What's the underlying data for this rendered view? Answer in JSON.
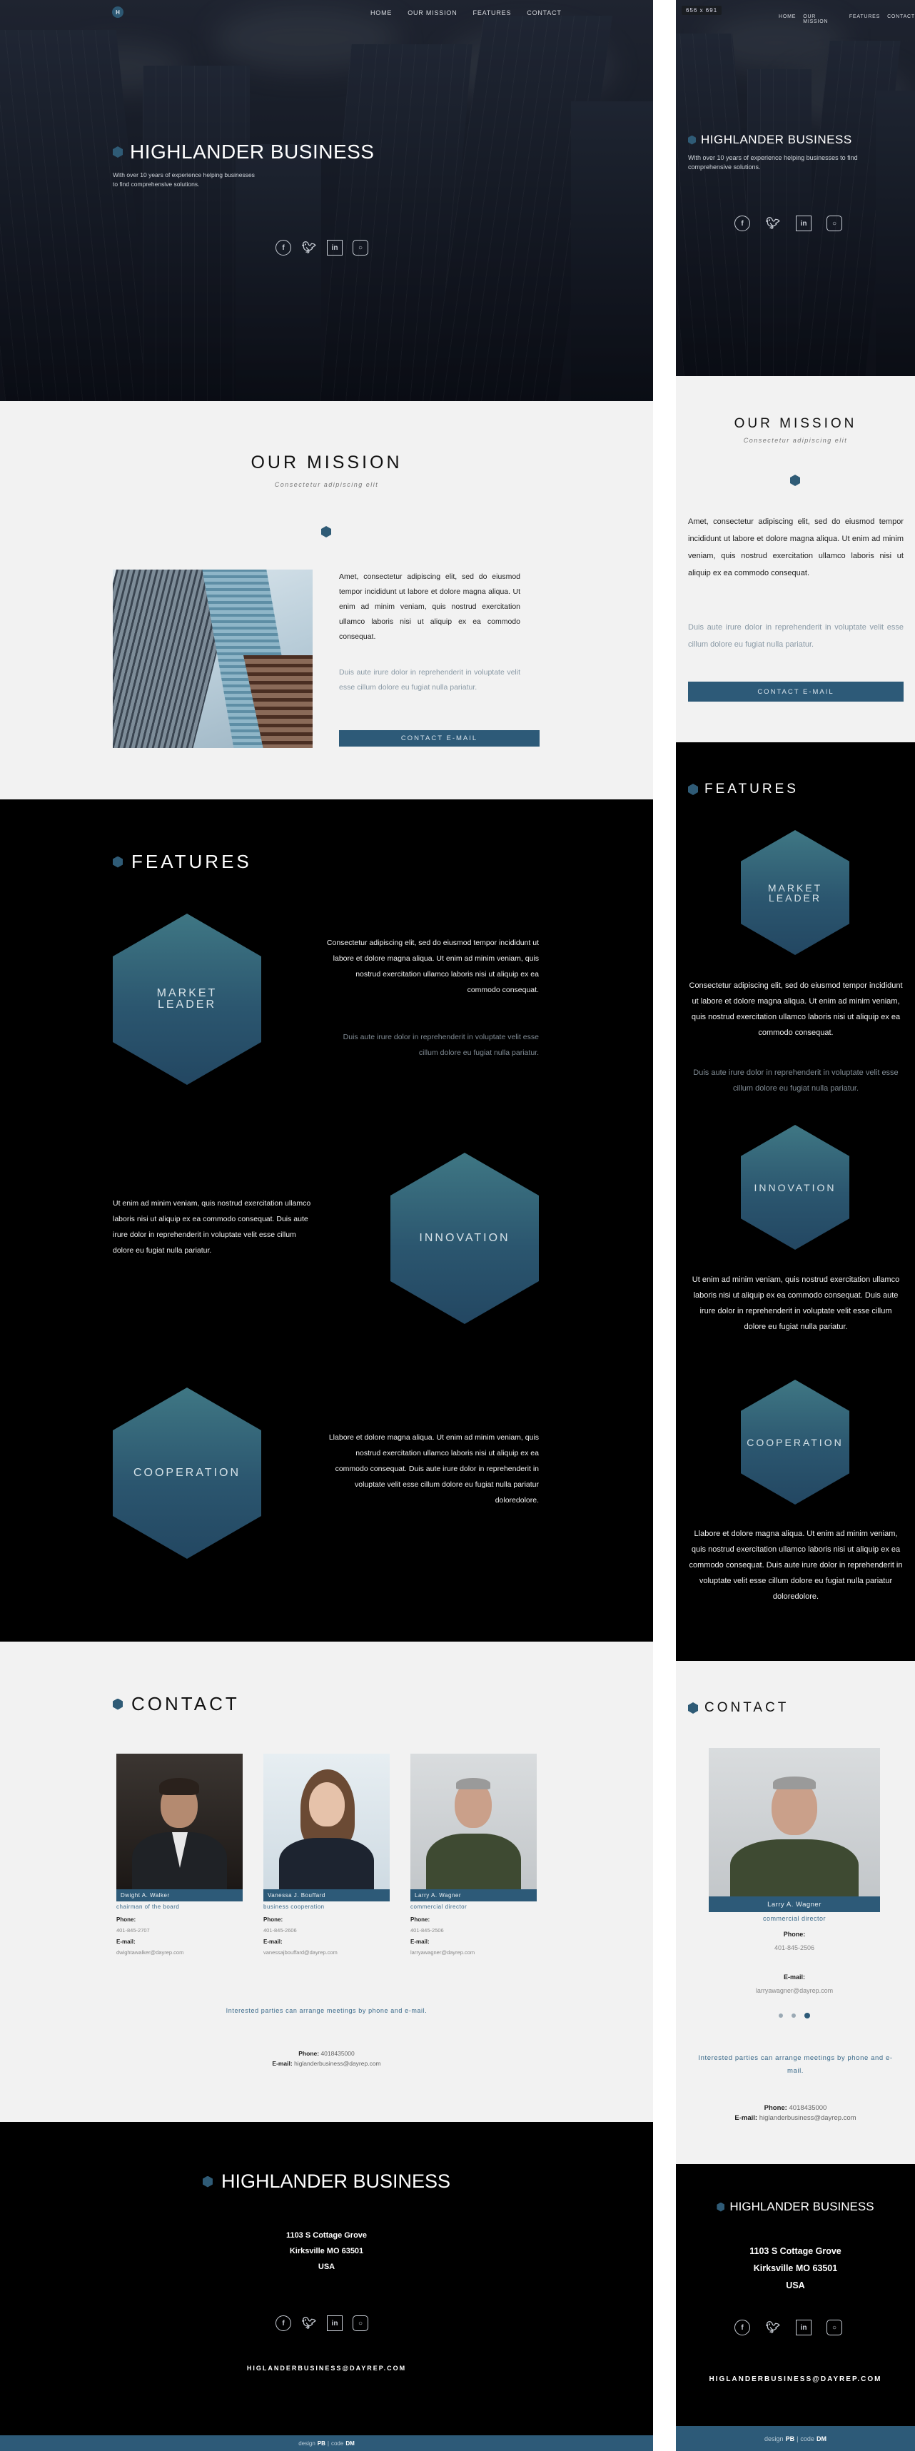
{
  "brand": {
    "name": "HIGHLANDER BUSINESS",
    "badge": "H",
    "tagline": "With over 10 years of experience helping businesses to find comprehensive solutions."
  },
  "nav": [
    "HOME",
    "OUR MISSION",
    "FEATURES",
    "CONTACT"
  ],
  "mobile_viewport_label": "656 x 691",
  "socials": [
    "facebook-icon",
    "twitter-icon",
    "linkedin-icon",
    "instagram-icon"
  ],
  "mission": {
    "title": "OUR MISSION",
    "subtitle": "Consectetur adipiscing elit",
    "text1": "Amet, consectetur adipiscing elit, sed do eiusmod tempor incididunt ut labore et dolore magna aliqua. Ut enim ad minim veniam, quis nostrud exercitation ullamco laboris nisi ut aliquip ex ea commodo consequat.",
    "text2": "Duis aute irure dolor in reprehenderit in voluptate velit esse cillum dolore eu fugiat nulla pariatur.",
    "button": "CONTACT E-MAIL"
  },
  "features": {
    "title": "FEATURES",
    "items": [
      {
        "label": "MARKET LEADER",
        "text": "Consectetur adipiscing elit, sed do eiusmod tempor incididunt ut labore et dolore magna aliqua. Ut enim ad minim veniam, quis nostrud exercitation ullamco laboris nisi ut aliquip ex ea commodo consequat.",
        "muted": "Duis aute irure dolor in reprehenderit in voluptate velit esse cillum dolore eu fugiat nulla pariatur."
      },
      {
        "label": "INNOVATION",
        "text": "Ut enim ad minim veniam, quis nostrud exercitation ullamco laboris nisi ut aliquip ex ea commodo consequat. Duis aute irure dolor in reprehenderit in voluptate velit esse cillum dolore eu fugiat nulla pariatur."
      },
      {
        "label": "COOPERATION",
        "text": "Llabore et dolore magna aliqua. Ut enim ad minim veniam, quis nostrud exercitation ullamco laboris nisi ut aliquip ex ea commodo consequat. Duis aute irure dolor in reprehenderit in voluptate velit esse cillum dolore eu fugiat nulla pariatur doloredolore."
      }
    ]
  },
  "contact": {
    "title": "CONTACT",
    "phone_label": "Phone:",
    "email_label": "E-mail:",
    "people": [
      {
        "name": "Dwight A. Walker",
        "role": "chairman of the board",
        "phone": "401-845-2707",
        "email": "dwightawalker@dayrep.com"
      },
      {
        "name": "Vanessa J. Bouffard",
        "role": "business cooperation",
        "phone": "401-845-2606",
        "email": "vanessajbouffard@dayrep.com"
      },
      {
        "name": "Larry A. Wagner",
        "role": "commercial director",
        "phone": "401-845-2506",
        "email": "larryawagner@dayrep.com"
      }
    ],
    "note": "Interested parties can arrange meetings by phone and e-mail.",
    "main_phone_label": "Phone:",
    "main_phone": "4018435000",
    "main_email_label": "E-mail:",
    "main_email": "higlanderbusiness@dayrep.com"
  },
  "footer": {
    "address_line1": "1103 S Cottage Grove",
    "address_line2": "Kirksville MO 63501",
    "address_line3": "USA",
    "email": "HIGLANDERBUSINESS@DAYREP.COM",
    "credit_design": "design",
    "credit_design_by": "PB",
    "credit_sep": "|",
    "credit_code": "code",
    "credit_code_by": "DM"
  },
  "colors": {
    "accent": "#2d5a78",
    "hex_top": "#3f7784",
    "hex_bottom": "#234762",
    "dark": "#000000",
    "light": "#f2f2f2"
  }
}
